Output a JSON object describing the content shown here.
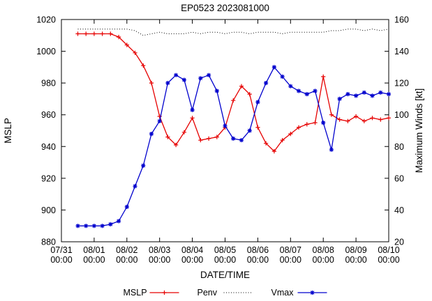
{
  "page": {
    "background": "#ffffff"
  },
  "chart_data": {
    "type": "line",
    "title": "EP0523 2023081000",
    "xlabel": "DATE/TIME",
    "ylabel": "MSLP",
    "y2label": "Maximum Winds [kt]",
    "ylim": [
      880,
      1020
    ],
    "y2lim": [
      20,
      160
    ],
    "yticks": [
      880,
      900,
      920,
      940,
      960,
      980,
      1000,
      1020
    ],
    "y2ticks": [
      20,
      40,
      60,
      80,
      100,
      120,
      140,
      160
    ],
    "xlim_days": [
      0,
      10
    ],
    "xticks": [
      {
        "pos": 0,
        "date": "07/31",
        "time": "00:00"
      },
      {
        "pos": 1,
        "date": "08/01",
        "time": "00:00"
      },
      {
        "pos": 2,
        "date": "08/02",
        "time": "00:00"
      },
      {
        "pos": 3,
        "date": "08/03",
        "time": "00:00"
      },
      {
        "pos": 4,
        "date": "08/04",
        "time": "00:00"
      },
      {
        "pos": 5,
        "date": "08/05",
        "time": "00:00"
      },
      {
        "pos": 6,
        "date": "08/06",
        "time": "00:00"
      },
      {
        "pos": 7,
        "date": "08/07",
        "time": "00:00"
      },
      {
        "pos": 8,
        "date": "08/08",
        "time": "00:00"
      },
      {
        "pos": 9,
        "date": "08/09",
        "time": "00:00"
      },
      {
        "pos": 10,
        "date": "08/10",
        "time": "00:00"
      }
    ],
    "x_days": [
      0.5,
      0.75,
      1,
      1.25,
      1.5,
      1.75,
      2,
      2.25,
      2.5,
      2.75,
      3,
      3.25,
      3.5,
      3.75,
      4,
      4.25,
      4.5,
      4.75,
      5,
      5.25,
      5.5,
      5.75,
      6,
      6.25,
      6.5,
      6.75,
      7,
      7.25,
      7.5,
      7.75,
      8,
      8.25,
      8.5,
      8.75,
      9,
      9.25,
      9.5,
      9.75,
      10
    ],
    "series": [
      {
        "name": "MSLP",
        "axis": "left",
        "color": "#e60000",
        "style": "solid",
        "marker": "plus",
        "values": [
          1011,
          1011,
          1011,
          1011,
          1011,
          1009,
          1004,
          999,
          991,
          980,
          959,
          946,
          941,
          949,
          958,
          944,
          945,
          946,
          952,
          969,
          978,
          973,
          952,
          942,
          937,
          944,
          948,
          952,
          954,
          955,
          984,
          960,
          957,
          956,
          959,
          956,
          958,
          957,
          958
        ]
      },
      {
        "name": "Penv",
        "axis": "left",
        "color": "#000000",
        "style": "dotted",
        "marker": "none",
        "values": [
          1014,
          1014,
          1014,
          1014,
          1014,
          1014,
          1014,
          1013,
          1010,
          1011,
          1012,
          1011,
          1011,
          1011,
          1012,
          1011,
          1012,
          1012,
          1011,
          1012,
          1012,
          1011,
          1012,
          1012,
          1012,
          1011,
          1012,
          1012,
          1012,
          1012,
          1012,
          1013,
          1013,
          1014,
          1014,
          1013,
          1014,
          1013,
          1014
        ]
      },
      {
        "name": "Vmax",
        "axis": "right",
        "color": "#0000cd",
        "style": "solid",
        "marker": "asterisk",
        "values": [
          30,
          30,
          30,
          30,
          31,
          33,
          42,
          55,
          68,
          88,
          96,
          120,
          125,
          122,
          103,
          123,
          125,
          115,
          93,
          85,
          84,
          90,
          108,
          120,
          130,
          124,
          118,
          115,
          113,
          115,
          95,
          78,
          110,
          113,
          112,
          114,
          112,
          114,
          113
        ]
      }
    ],
    "legend_position": "bottom-center",
    "grid": false
  }
}
